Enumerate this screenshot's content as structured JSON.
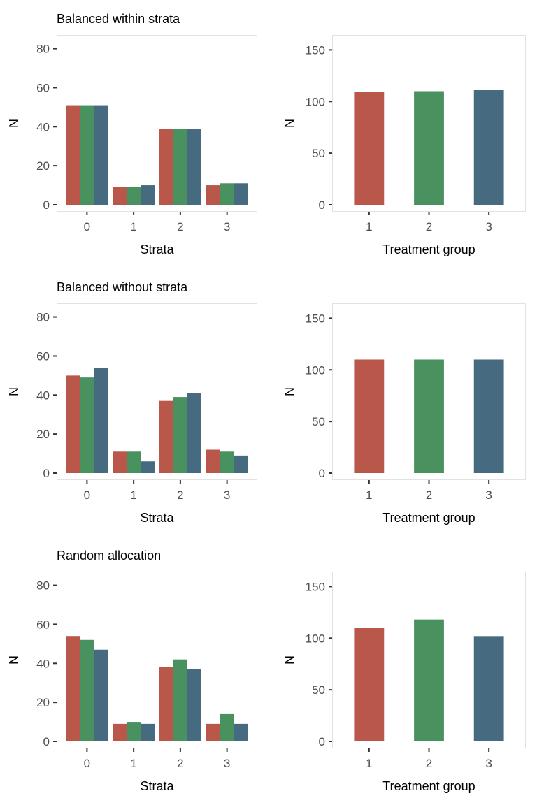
{
  "colors": {
    "group1": "#B8574A",
    "group2": "#4A9160",
    "group3": "#466B80",
    "panel_border": "#E2E2E2",
    "axis_text": "#4D4D4D",
    "label_text": "#000000"
  },
  "chart_data": [
    {
      "type": "bar",
      "title": "Balanced within strata",
      "xlabel": "Strata",
      "ylabel": "N",
      "categories": [
        "0",
        "1",
        "2",
        "3"
      ],
      "yticks": [
        0,
        20,
        40,
        60,
        80
      ],
      "ylim": [
        0,
        82
      ],
      "series": [
        {
          "values": [
            51,
            9,
            39,
            10
          ]
        },
        {
          "values": [
            51,
            9,
            39,
            11
          ]
        },
        {
          "values": [
            51,
            10,
            39,
            11
          ]
        }
      ]
    },
    {
      "type": "bar",
      "title": "",
      "xlabel": "Treatment group",
      "ylabel": "N",
      "categories": [
        "1",
        "2",
        "3"
      ],
      "yticks": [
        0,
        50,
        100,
        150
      ],
      "ylim": [
        0,
        155
      ],
      "values": [
        109,
        110,
        111
      ]
    },
    {
      "type": "bar",
      "title": "Balanced without strata",
      "xlabel": "Strata",
      "ylabel": "N",
      "categories": [
        "0",
        "1",
        "2",
        "3"
      ],
      "yticks": [
        0,
        20,
        40,
        60,
        80
      ],
      "ylim": [
        0,
        82
      ],
      "series": [
        {
          "values": [
            50,
            11,
            37,
            12
          ]
        },
        {
          "values": [
            49,
            11,
            39,
            11
          ]
        },
        {
          "values": [
            54,
            6,
            41,
            9
          ]
        }
      ]
    },
    {
      "type": "bar",
      "title": "",
      "xlabel": "Treatment group",
      "ylabel": "N",
      "categories": [
        "1",
        "2",
        "3"
      ],
      "yticks": [
        0,
        50,
        100,
        150
      ],
      "ylim": [
        0,
        155
      ],
      "values": [
        110,
        110,
        110
      ]
    },
    {
      "type": "bar",
      "title": "Random allocation",
      "xlabel": "Strata",
      "ylabel": "N",
      "categories": [
        "0",
        "1",
        "2",
        "3"
      ],
      "yticks": [
        0,
        20,
        40,
        60,
        80
      ],
      "ylim": [
        0,
        82
      ],
      "series": [
        {
          "values": [
            54,
            9,
            38,
            9
          ]
        },
        {
          "values": [
            52,
            10,
            42,
            14
          ]
        },
        {
          "values": [
            47,
            9,
            37,
            9
          ]
        }
      ]
    },
    {
      "type": "bar",
      "title": "",
      "xlabel": "Treatment group",
      "ylabel": "N",
      "categories": [
        "1",
        "2",
        "3"
      ],
      "yticks": [
        0,
        50,
        100,
        150
      ],
      "ylim": [
        0,
        155
      ],
      "values": [
        110,
        118,
        102
      ]
    }
  ]
}
